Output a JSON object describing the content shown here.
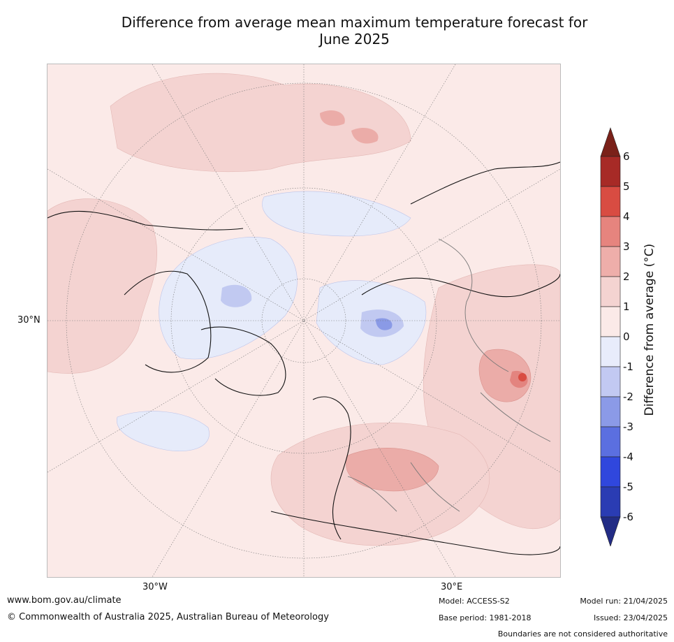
{
  "title_line1": "Difference from average mean maximum temperature forecast for",
  "title_line2": "June 2025",
  "map": {
    "lat_label": "30°N",
    "lon_labels": [
      "30°W",
      "30°E"
    ],
    "colors": {
      "ocean_bg": "#fbeae8",
      "warm1": "#f4d3d1",
      "warm2": "#ebaca8",
      "warm3": "#e3847f",
      "hot": "#d94c42",
      "cool1": "#e6ebfa",
      "cool2": "#c1c9f1",
      "cool3": "#8a9ae6"
    }
  },
  "colorbar": {
    "title": "Difference from average (°C)",
    "ticks": [
      "6",
      "5",
      "4",
      "3",
      "2",
      "1",
      "0",
      "-1",
      "-2",
      "-3",
      "-4",
      "-5",
      "-6"
    ],
    "colors": [
      "#a72a26",
      "#d84c42",
      "#e6847e",
      "#eeaeaa",
      "#f4d3d1",
      "#fbeae8",
      "#e8ecfb",
      "#c2c9f2",
      "#8b9ae7",
      "#5b6fe0",
      "#3047dd",
      "#2a3cb3"
    ],
    "over_color": "#7a2119",
    "under_color": "#222c85"
  },
  "footer": {
    "url": "www.bom.gov.au/climate",
    "copyright": "© Commonwealth of Australia 2025, Australian Bureau of Meteorology",
    "model": "Model: ACCESS-S2",
    "base_period": "Base period: 1981-2018",
    "model_run": "Model run: 21/04/2025",
    "issued": "Issued: 23/04/2025",
    "disclaimer": "Boundaries are not considered authoritative"
  }
}
